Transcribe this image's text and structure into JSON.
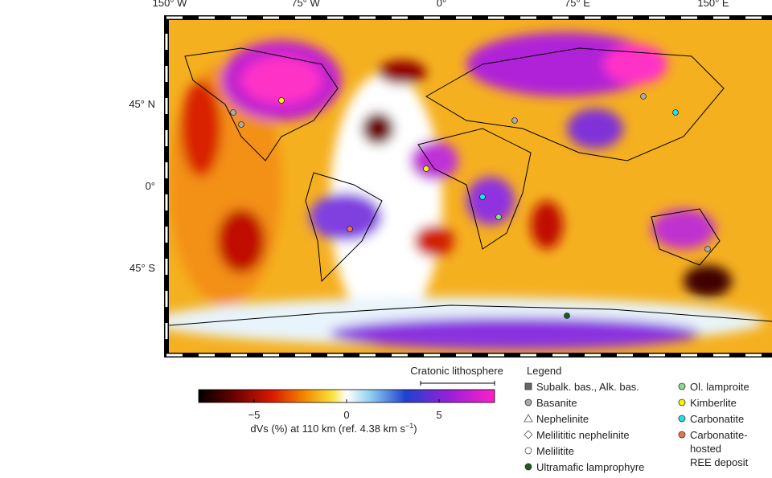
{
  "map": {
    "lon_ticks": [
      {
        "value": -150,
        "label": "150° W"
      },
      {
        "value": -75,
        "label": "75° W"
      },
      {
        "value": 0,
        "label": "0°"
      },
      {
        "value": 75,
        "label": "75° E"
      },
      {
        "value": 150,
        "label": "150° E"
      }
    ],
    "lat_ticks": [
      {
        "value": 45,
        "label": "45° N"
      },
      {
        "value": 0,
        "label": "0°"
      },
      {
        "value": -45,
        "label": "45° S"
      }
    ]
  },
  "colorbar": {
    "clim": [
      -8,
      8
    ],
    "ticks": [
      {
        "value": -5,
        "label": "−5"
      },
      0,
      5
    ],
    "label": "dVs (%) at 110 km (ref. 4.38 km s",
    "label_sup": "−1",
    "label_end": ")",
    "craton_label": "Cratonic lithosphere"
  },
  "legend": {
    "title": "Legend",
    "entries": [
      {
        "label_lines": [
          "Subalk. bas., Alk. bas."
        ],
        "marker": "square",
        "color": "#666666"
      },
      {
        "label_lines": [
          "Basanite"
        ],
        "marker": "circle",
        "color": "#aaaaaa"
      },
      {
        "label_lines": [
          "Nephelinite"
        ],
        "marker": "triangle",
        "color": "#ffffff"
      },
      {
        "label_lines": [
          "Melilititic nephelinite"
        ],
        "marker": "diamond",
        "color": "#ffffff"
      },
      {
        "label_lines": [
          "Melilitite"
        ],
        "marker": "circle",
        "color": "#ffffff"
      },
      {
        "label_lines": [
          "Ultramafic lamprophyre"
        ],
        "marker": "circle",
        "color": "#1a5e1a"
      },
      {
        "label_lines": [
          "Ol. lamproite"
        ],
        "marker": "circle",
        "color": "#8fd88f"
      },
      {
        "label_lines": [
          "Kimberlite"
        ],
        "marker": "circle",
        "color": "#f2f20a"
      },
      {
        "label_lines": [
          "Carbonatite"
        ],
        "marker": "circle",
        "color": "#22e0e8"
      },
      {
        "label_lines": [
          "Carbonatite-",
          "hosted",
          "REE deposit"
        ],
        "marker": "circle",
        "color": "#e8764a"
      }
    ]
  }
}
